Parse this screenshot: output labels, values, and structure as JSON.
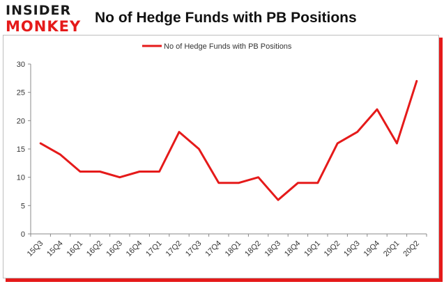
{
  "brand": {
    "logo_top": "INSIDER",
    "logo_bottom": "MONKEY"
  },
  "chart_data": {
    "type": "line",
    "title": "No of Hedge Funds with PB Positions",
    "categories": [
      "15Q3",
      "15Q4",
      "16Q1",
      "16Q2",
      "16Q3",
      "16Q4",
      "17Q1",
      "17Q2",
      "17Q3",
      "17Q4",
      "18Q1",
      "18Q2",
      "18Q3",
      "18Q4",
      "19Q1",
      "19Q2",
      "19Q3",
      "19Q4",
      "20Q1",
      "20Q2"
    ],
    "series": [
      {
        "name": "No of Hedge Funds with PB Positions",
        "values": [
          16,
          14,
          11,
          11,
          10,
          11,
          11,
          18,
          15,
          9,
          9,
          10,
          6,
          9,
          9,
          16,
          18,
          22,
          16,
          27
        ],
        "color": "#e51a1a"
      }
    ],
    "ylim": [
      0,
      30
    ],
    "yticks": [
      0,
      5,
      10,
      15,
      20,
      25,
      30
    ],
    "xlabel": "",
    "ylabel": "",
    "legend": "top-center",
    "grid": false
  },
  "colors": {
    "accent": "#e51a1a",
    "axis": "#888888",
    "text": "#333333"
  }
}
